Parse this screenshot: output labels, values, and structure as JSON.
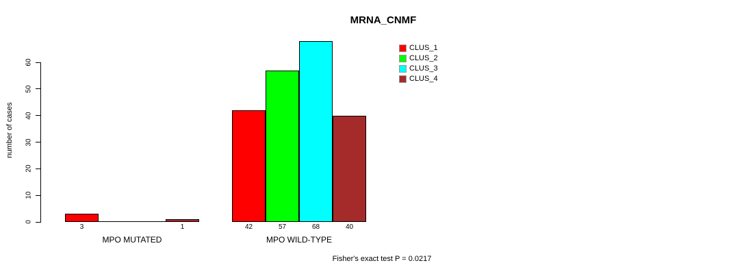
{
  "chart_data": {
    "type": "bar",
    "title": "MRNA_CNMF",
    "ylabel": "number of cases",
    "xlabel": "",
    "categories": [
      "MPO MUTATED",
      "MPO WILD-TYPE"
    ],
    "series": [
      {
        "name": "CLUS_1",
        "color": "#FF0000",
        "values": [
          3,
          42
        ]
      },
      {
        "name": "CLUS_2",
        "color": "#00FF00",
        "values": [
          0,
          57
        ]
      },
      {
        "name": "CLUS_3",
        "color": "#00FFFF",
        "values": [
          0,
          68
        ]
      },
      {
        "name": "CLUS_4",
        "color": "#A52A2A",
        "values": [
          1,
          40
        ]
      }
    ],
    "bar_value_labels": [
      [
        "3",
        "",
        "",
        "1"
      ],
      [
        "42",
        "57",
        "68",
        "40"
      ]
    ],
    "yticks": [
      0,
      10,
      20,
      30,
      40,
      50,
      60
    ],
    "ylim": [
      0,
      68
    ],
    "grid": false,
    "legend_position": "top-right",
    "legend_entries": [
      "CLUS_1",
      "CLUS_2",
      "CLUS_3",
      "CLUS_4"
    ],
    "annotation": "Fisher's exact test P = 0.0217"
  }
}
